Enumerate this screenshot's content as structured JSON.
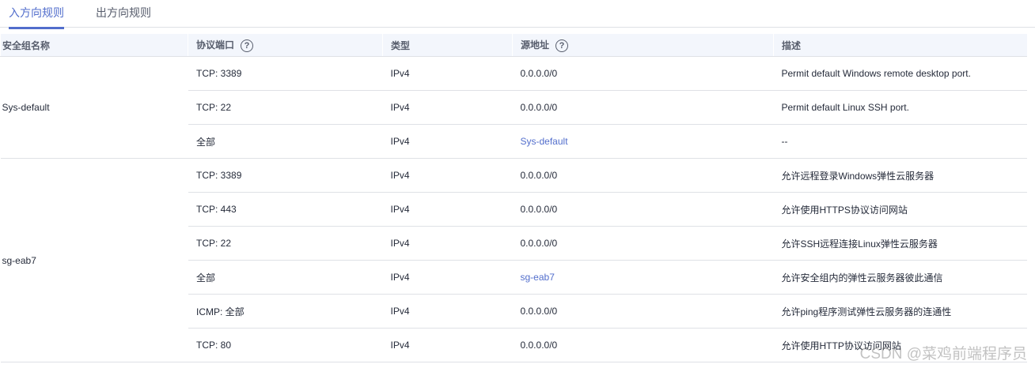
{
  "tabs": [
    {
      "label": "入方向规则",
      "active": true
    },
    {
      "label": "出方向规则",
      "active": false
    }
  ],
  "columns": [
    "安全组名称",
    "协议端口",
    "类型",
    "源地址",
    "描述"
  ],
  "colors": {
    "accent": "#526ecc",
    "header_bg": "#f3f6fc"
  },
  "groups": [
    {
      "name": "Sys-default",
      "rules": [
        {
          "port": "TCP: 3389",
          "type": "IPv4",
          "source": "0.0.0.0/0",
          "source_link": false,
          "desc": "Permit default Windows remote desktop port."
        },
        {
          "port": "TCP: 22",
          "type": "IPv4",
          "source": "0.0.0.0/0",
          "source_link": false,
          "desc": "Permit default Linux SSH port."
        },
        {
          "port": "全部",
          "type": "IPv4",
          "source": "Sys-default",
          "source_link": true,
          "desc": "--"
        }
      ]
    },
    {
      "name": "sg-eab7",
      "rules": [
        {
          "port": "TCP: 3389",
          "type": "IPv4",
          "source": "0.0.0.0/0",
          "source_link": false,
          "desc": "允许远程登录Windows弹性云服务器"
        },
        {
          "port": "TCP: 443",
          "type": "IPv4",
          "source": "0.0.0.0/0",
          "source_link": false,
          "desc": "允许使用HTTPS协议访问网站"
        },
        {
          "port": "TCP: 22",
          "type": "IPv4",
          "source": "0.0.0.0/0",
          "source_link": false,
          "desc": "允许SSH远程连接Linux弹性云服务器"
        },
        {
          "port": "全部",
          "type": "IPv4",
          "source": "sg-eab7",
          "source_link": true,
          "desc": "允许安全组内的弹性云服务器彼此通信"
        },
        {
          "port": "ICMP: 全部",
          "type": "IPv4",
          "source": "0.0.0.0/0",
          "source_link": false,
          "desc": "允许ping程序测试弹性云服务器的连通性"
        },
        {
          "port": "TCP: 80",
          "type": "IPv4",
          "source": "0.0.0.0/0",
          "source_link": false,
          "desc": "允许使用HTTP协议访问网站"
        }
      ]
    }
  ],
  "watermark": "CSDN @菜鸡前端程序员"
}
